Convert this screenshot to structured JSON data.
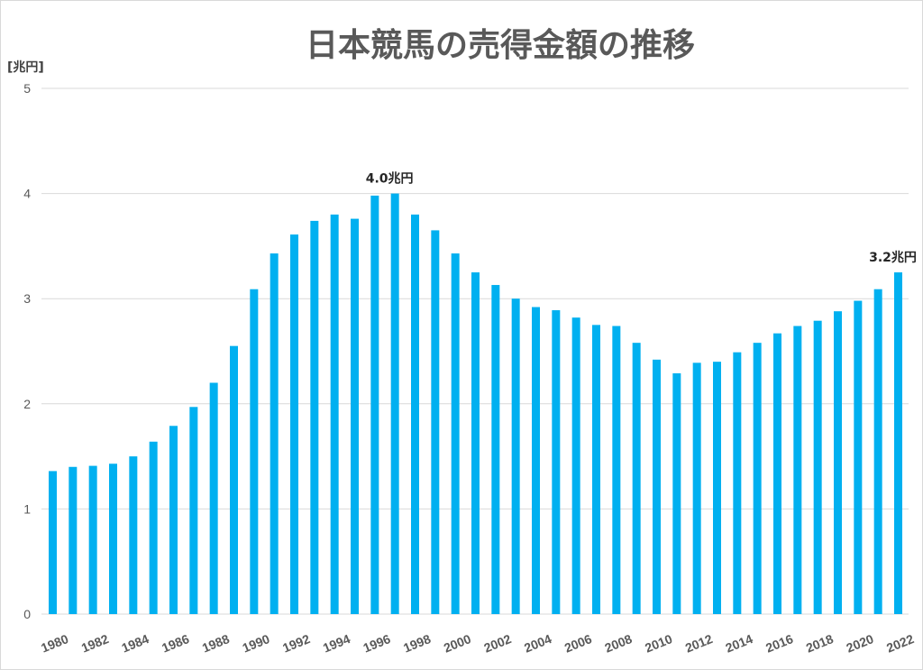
{
  "chart_data": {
    "type": "bar",
    "title": "日本競馬の売得金額の推移",
    "ylabel": "[兆円]",
    "xlabel": "",
    "ylim": [
      0,
      5
    ],
    "yticks": [
      0,
      1,
      2,
      3,
      4,
      5
    ],
    "grid": true,
    "legend": "none",
    "bar_color": "#00b0f0",
    "categories": [
      "1980",
      "1981",
      "1982",
      "1983",
      "1984",
      "1985",
      "1986",
      "1987",
      "1988",
      "1989",
      "1990",
      "1991",
      "1992",
      "1993",
      "1994",
      "1995",
      "1996",
      "1997",
      "1998",
      "1999",
      "2000",
      "2001",
      "2002",
      "2003",
      "2004",
      "2005",
      "2006",
      "2007",
      "2008",
      "2009",
      "2010",
      "2011",
      "2012",
      "2013",
      "2014",
      "2015",
      "2016",
      "2017",
      "2018",
      "2019",
      "2020",
      "2021",
      "2022"
    ],
    "x_tick_labels": [
      "1980",
      "",
      "1982",
      "",
      "1984",
      "",
      "1986",
      "",
      "1988",
      "",
      "1990",
      "",
      "1992",
      "",
      "1994",
      "",
      "1996",
      "",
      "1998",
      "",
      "2000",
      "",
      "2002",
      "",
      "2004",
      "",
      "2006",
      "",
      "2008",
      "",
      "2010",
      "",
      "2012",
      "",
      "2014",
      "",
      "2016",
      "",
      "2018",
      "",
      "2020",
      "",
      "2022"
    ],
    "values": [
      1.36,
      1.4,
      1.41,
      1.43,
      1.5,
      1.64,
      1.79,
      1.97,
      2.2,
      2.55,
      3.09,
      3.43,
      3.61,
      3.74,
      3.8,
      3.76,
      3.98,
      4.0,
      3.8,
      3.65,
      3.43,
      3.25,
      3.13,
      3.0,
      2.92,
      2.89,
      2.82,
      2.75,
      2.74,
      2.58,
      2.42,
      2.29,
      2.39,
      2.4,
      2.49,
      2.58,
      2.67,
      2.74,
      2.79,
      2.88,
      2.98,
      3.09,
      3.25
    ],
    "annotations": [
      {
        "category": "1997",
        "text": "4.0兆円"
      },
      {
        "category": "2022",
        "text": "3.2兆円"
      }
    ]
  }
}
